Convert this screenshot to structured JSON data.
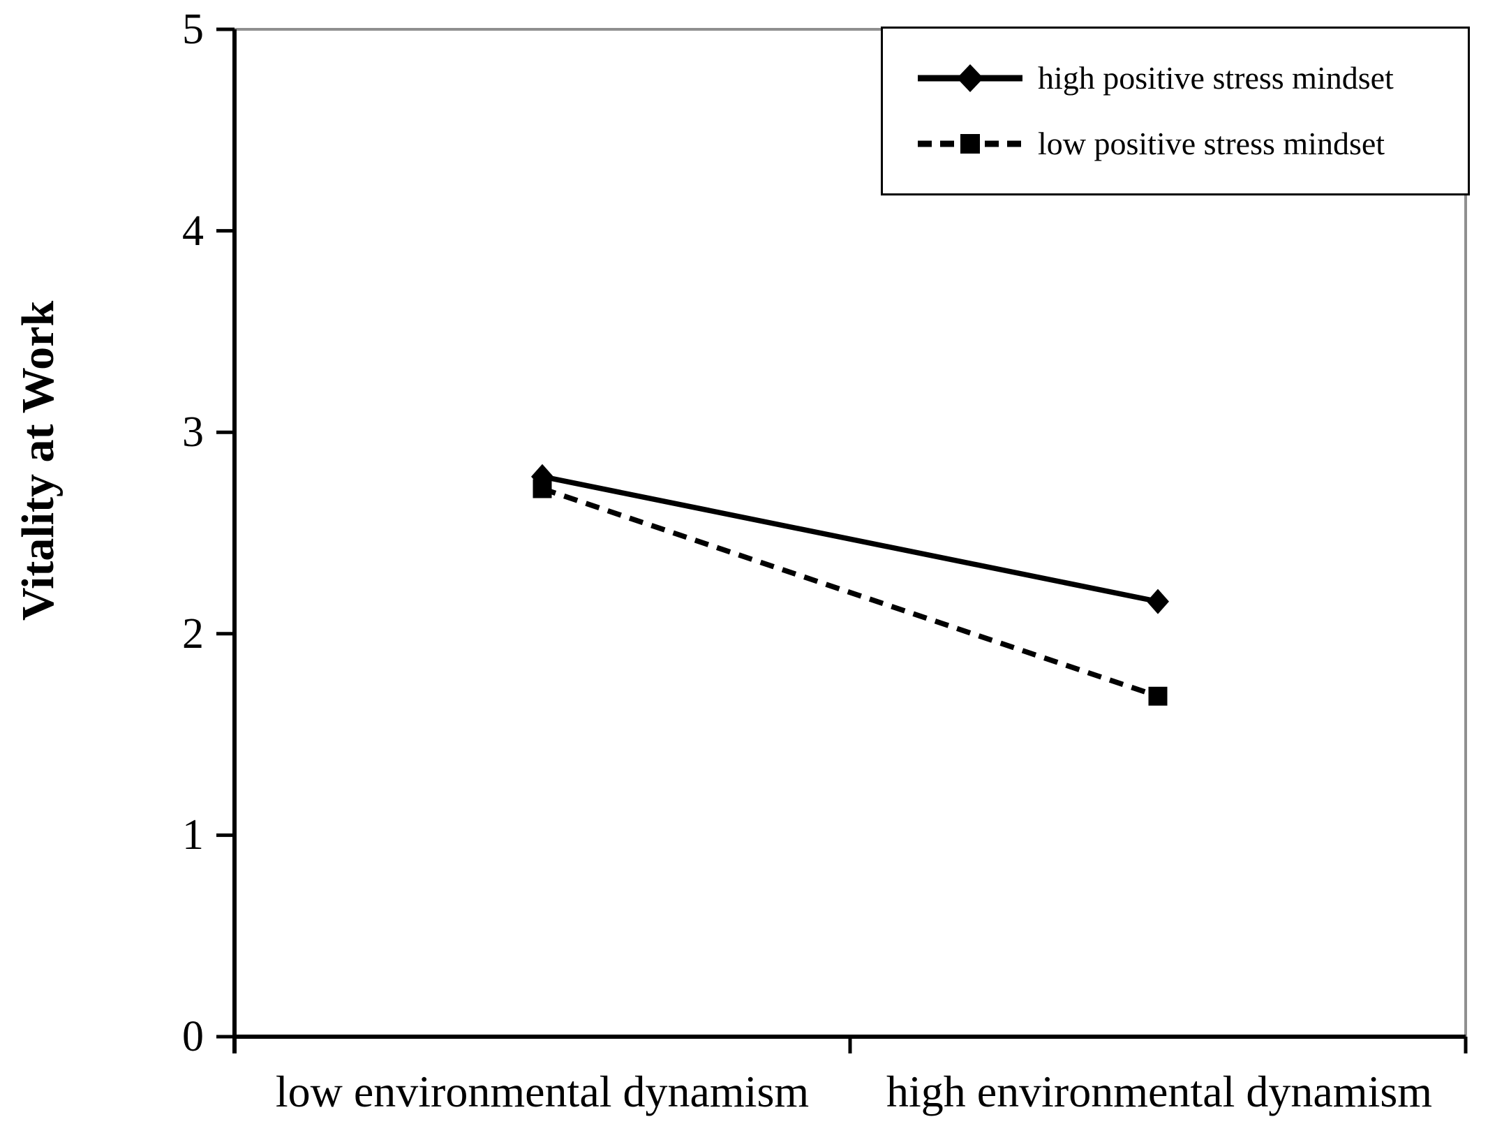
{
  "chart_data": {
    "type": "line",
    "title": "",
    "categories": [
      "low environmental dynamism",
      "high environmental dynamism"
    ],
    "series": [
      {
        "name": "high positive stress mindset",
        "marker": "diamond",
        "line_style": "solid",
        "values": [
          2.78,
          2.16
        ]
      },
      {
        "name": "low positive stress mindset",
        "marker": "square",
        "line_style": "dashed",
        "values": [
          2.72,
          1.69
        ]
      }
    ],
    "xlabel": "",
    "ylabel": "Vitality at Work",
    "ylim": [
      0,
      5
    ],
    "yticks": [
      0,
      1,
      2,
      3,
      4,
      5
    ],
    "grid": false,
    "legend_position": "top-right",
    "line_color": "#000000",
    "axis_color": "#000000",
    "plot_border_color": "#8f8f8f",
    "background": "#ffffff"
  }
}
